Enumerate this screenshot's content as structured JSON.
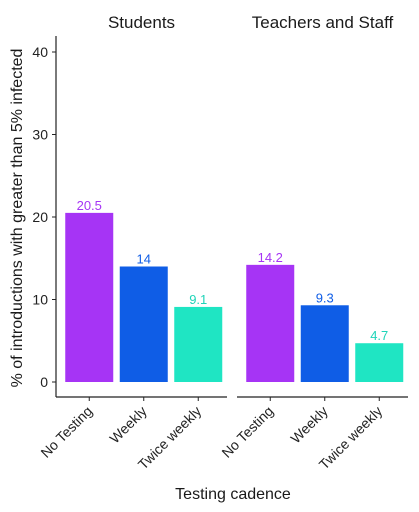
{
  "chart_data": {
    "type": "bar",
    "ylabel": "% of introductions with greater than 5% infected",
    "xlabel": "Testing cadence",
    "ylim": [
      0,
      40
    ],
    "yticks": [
      0,
      10,
      20,
      30,
      40
    ],
    "categories": [
      "No Testing",
      "Weekly",
      "Twice weekly"
    ],
    "colors": [
      "#A634F5",
      "#0F5DE6",
      "#1FE5C3"
    ],
    "label_colors": [
      "#A634F5",
      "#0F5DE6",
      "#1FD4B8"
    ],
    "grid": false,
    "legend": "none",
    "panels": [
      {
        "title": "Students",
        "values": [
          20.5,
          14,
          9.1
        ],
        "labels": [
          "20.5",
          "14",
          "9.1"
        ]
      },
      {
        "title": "Teachers and Staff",
        "values": [
          14.2,
          9.3,
          4.7
        ],
        "labels": [
          "14.2",
          "9.3",
          "4.7"
        ]
      }
    ]
  }
}
